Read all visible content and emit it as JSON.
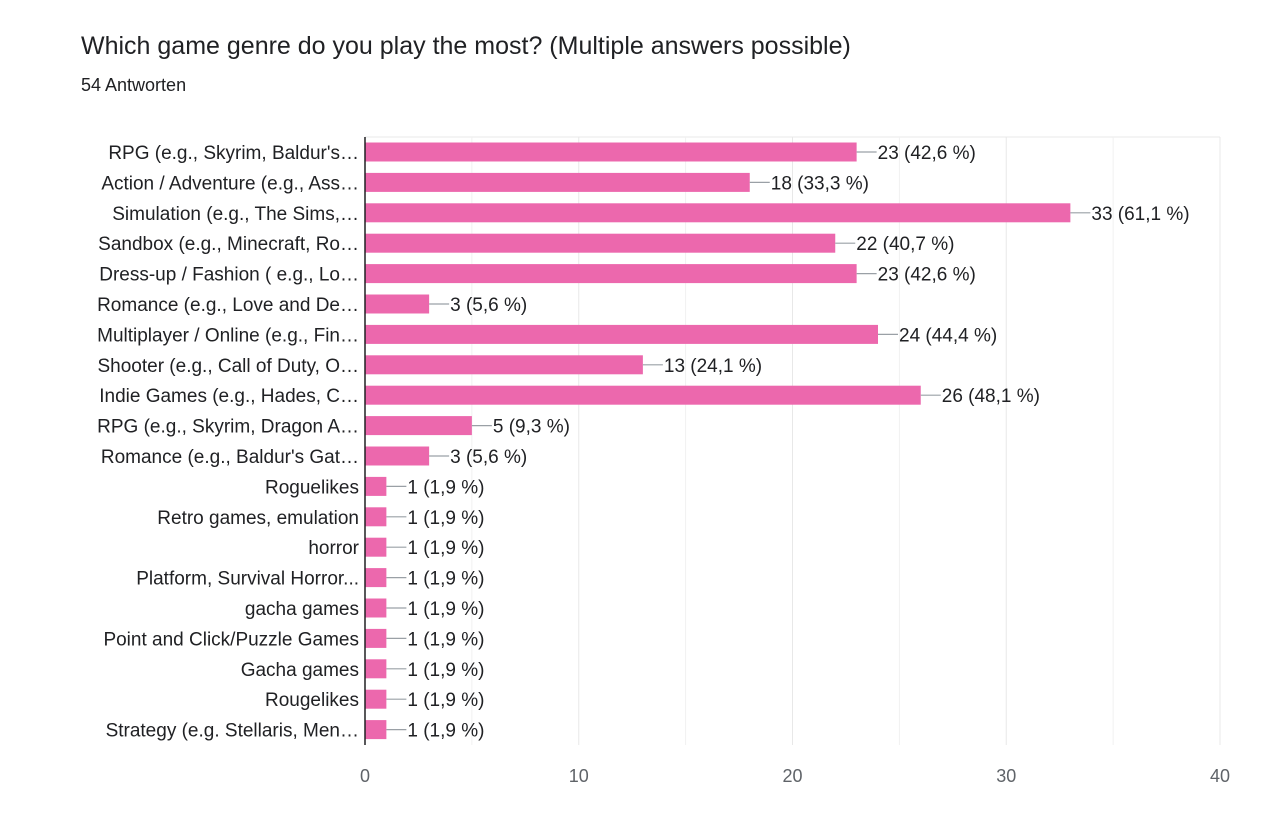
{
  "title": "Which game genre do you play the most? (Multiple answers possible)",
  "subtitle": "54 Antworten",
  "chart_data": {
    "type": "bar",
    "orientation": "horizontal",
    "categories": [
      "RPG (e.g., Skyrim, Baldur's…",
      "Action / Adventure (e.g., Ass…",
      "Simulation (e.g., The Sims,…",
      "Sandbox (e.g., Minecraft, Ro…",
      "Dress-up / Fashion ( e.g., Lo…",
      "Romance (e.g., Love and De…",
      "Multiplayer / Online (e.g., Fin…",
      "Shooter (e.g., Call of Duty, O…",
      "Indie Games (e.g., Hades, C…",
      "RPG (e.g., Skyrim, Dragon A…",
      "Romance (e.g., Baldur's Gat…",
      "Roguelikes",
      "Retro games, emulation",
      "horror",
      "Platform, Survival Horror...",
      "gacha games",
      "Point and Click/Puzzle Games",
      "Gacha games",
      "Rougelikes",
      "Strategy (e.g. Stellaris, Men…"
    ],
    "values": [
      23,
      18,
      33,
      22,
      23,
      3,
      24,
      13,
      26,
      5,
      3,
      1,
      1,
      1,
      1,
      1,
      1,
      1,
      1,
      1
    ],
    "value_labels": [
      "23 (42,6 %)",
      "18 (33,3 %)",
      "33 (61,1 %)",
      "22 (40,7 %)",
      "23 (42,6 %)",
      "3 (5,6 %)",
      "24 (44,4 %)",
      "13 (24,1 %)",
      "26 (48,1 %)",
      "5 (9,3 %)",
      "3 (5,6 %)",
      "1 (1,9 %)",
      "1 (1,9 %)",
      "1 (1,9 %)",
      "1 (1,9 %)",
      "1 (1,9 %)",
      "1 (1,9 %)",
      "1 (1,9 %)",
      "1 (1,9 %)",
      "1 (1,9 %)"
    ],
    "xlim": [
      0,
      40
    ],
    "xticks": [
      0,
      10,
      20,
      30,
      40
    ],
    "grid": true,
    "legend": "none",
    "colors": {
      "bar": "#ec68ad",
      "grid": "#e8e8e8",
      "axis": "#202124",
      "text": "#202124",
      "tick_text": "#5f6368",
      "leader": "#9aa0a6"
    }
  }
}
